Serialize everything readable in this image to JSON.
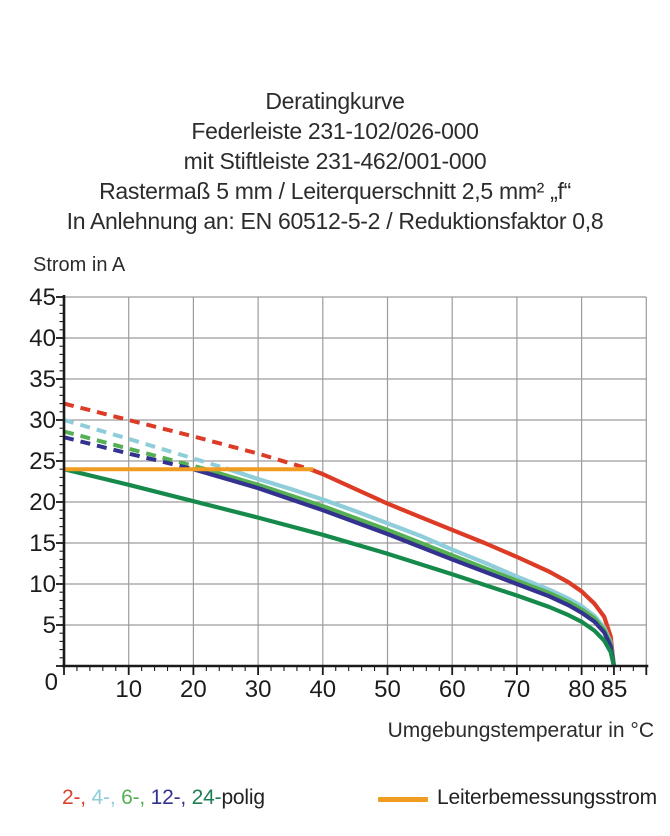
{
  "title": {
    "lines": [
      "Deratingkurve",
      "Federleiste 231-102/026-000",
      "mit Stiftleiste 231-462/001-000",
      "Rastermaß 5 mm / Leiterquerschnitt 2,5 mm² „f“",
      "In Anlehnung an: EN 60512-5-2 / Reduktionsfaktor 0,8"
    ]
  },
  "axes": {
    "y_label": "Strom in A",
    "x_label": "Umgebungstemperatur in °C"
  },
  "legend": {
    "pole_items": [
      {
        "label": "2-",
        "color": "#d9432e"
      },
      {
        "label": "4-",
        "color": "#8ecdd9"
      },
      {
        "label": "6-",
        "color": "#55b054"
      },
      {
        "label": "12-",
        "color": "#33338f"
      },
      {
        "label": "24-",
        "color": "#1d7f52"
      }
    ],
    "separator": ", ",
    "suffix": "polig",
    "reference": {
      "label": "Leiterbemessungsstrom",
      "color": "#f09c20"
    }
  },
  "chart_data": {
    "type": "line",
    "title": "Deratingkurve Federleiste 231-102/026-000 mit Stiftleiste 231-462/001-000",
    "xlabel": "Umgebungstemperatur in °C",
    "ylabel": "Strom in A",
    "xlim": [
      0,
      90
    ],
    "ylim": [
      0,
      45
    ],
    "grid": true,
    "grid_color": "#9c9c9c",
    "axis_color": "#1a1a1a",
    "y_ticks": [
      0,
      5,
      10,
      15,
      20,
      25,
      30,
      35,
      40,
      45
    ],
    "x_ticks": [
      10,
      20,
      30,
      40,
      50,
      60,
      70,
      80,
      85
    ],
    "x_gridlines": [
      10,
      20,
      30,
      40,
      50,
      60,
      70,
      80
    ],
    "minor_tick_step": {
      "x": 2,
      "y": 1
    },
    "legend_note": "dashed = above Leiterbemessungsstrom (24 A), solid = below",
    "series": [
      {
        "name": "2-polig",
        "color": "#dc3b26",
        "dashed_points": [
          [
            0,
            32
          ],
          [
            10,
            30
          ],
          [
            20,
            28
          ],
          [
            30,
            25.9
          ],
          [
            38,
            24
          ]
        ],
        "solid_points": [
          [
            38,
            24
          ],
          [
            40,
            23.4
          ],
          [
            45,
            21.6
          ],
          [
            50,
            19.8
          ],
          [
            55,
            18.2
          ],
          [
            60,
            16.6
          ],
          [
            65,
            15.0
          ],
          [
            70,
            13.3
          ],
          [
            75,
            11.5
          ],
          [
            78,
            10.2
          ],
          [
            80,
            9.1
          ],
          [
            82,
            7.6
          ],
          [
            83.5,
            6.0
          ],
          [
            84.5,
            3.6
          ],
          [
            85,
            0
          ]
        ]
      },
      {
        "name": "4-polig",
        "color": "#8ecdd9",
        "dashed_points": [
          [
            0,
            30
          ],
          [
            10,
            27.7
          ],
          [
            20,
            25.3
          ],
          [
            25,
            24.1
          ]
        ],
        "solid_points": [
          [
            25,
            24.1
          ],
          [
            30,
            22.8
          ],
          [
            35,
            21.6
          ],
          [
            40,
            20.3
          ],
          [
            45,
            18.9
          ],
          [
            50,
            17.4
          ],
          [
            55,
            15.9
          ],
          [
            60,
            14.2
          ],
          [
            65,
            12.6
          ],
          [
            70,
            10.9
          ],
          [
            75,
            9.3
          ],
          [
            78,
            8.2
          ],
          [
            80,
            7.3
          ],
          [
            82,
            6.1
          ],
          [
            83.5,
            4.7
          ],
          [
            84.5,
            2.9
          ],
          [
            85,
            0
          ]
        ]
      },
      {
        "name": "6-polig",
        "color": "#55b054",
        "dashed_points": [
          [
            0,
            28.6
          ],
          [
            10,
            26.5
          ],
          [
            20,
            24.4
          ],
          [
            21,
            24.2
          ]
        ],
        "solid_points": [
          [
            21,
            24.2
          ],
          [
            30,
            22.1
          ],
          [
            40,
            19.5
          ],
          [
            50,
            16.6
          ],
          [
            60,
            13.5
          ],
          [
            70,
            10.4
          ],
          [
            75,
            8.9
          ],
          [
            78,
            7.8
          ],
          [
            80,
            6.9
          ],
          [
            82,
            5.8
          ],
          [
            83.5,
            4.4
          ],
          [
            84.5,
            2.7
          ],
          [
            85,
            0
          ]
        ]
      },
      {
        "name": "12-polig",
        "color": "#33338f",
        "dashed_points": [
          [
            0,
            27.9
          ],
          [
            10,
            25.9
          ],
          [
            20,
            24.0
          ]
        ],
        "solid_points": [
          [
            20,
            24.0
          ],
          [
            30,
            21.7
          ],
          [
            40,
            19.0
          ],
          [
            50,
            16.1
          ],
          [
            60,
            13.0
          ],
          [
            70,
            10.0
          ],
          [
            75,
            8.5
          ],
          [
            78,
            7.4
          ],
          [
            80,
            6.5
          ],
          [
            82,
            5.4
          ],
          [
            83.5,
            4.1
          ],
          [
            84.5,
            2.4
          ],
          [
            85,
            0
          ]
        ]
      },
      {
        "name": "24-polig",
        "color": "#168a4b",
        "dashed_points": [],
        "solid_points": [
          [
            0,
            24
          ],
          [
            10,
            22.1
          ],
          [
            20,
            20.1
          ],
          [
            30,
            18.1
          ],
          [
            40,
            16.0
          ],
          [
            50,
            13.7
          ],
          [
            60,
            11.2
          ],
          [
            70,
            8.6
          ],
          [
            75,
            7.2
          ],
          [
            78,
            6.2
          ],
          [
            80,
            5.4
          ],
          [
            82,
            4.3
          ],
          [
            83.5,
            3.1
          ],
          [
            84.5,
            1.7
          ],
          [
            85,
            0
          ]
        ]
      }
    ],
    "reference_line": {
      "name": "Leiterbemessungsstrom",
      "color": "#f09c20",
      "value": 24,
      "x_range": [
        0,
        38.5
      ]
    }
  }
}
